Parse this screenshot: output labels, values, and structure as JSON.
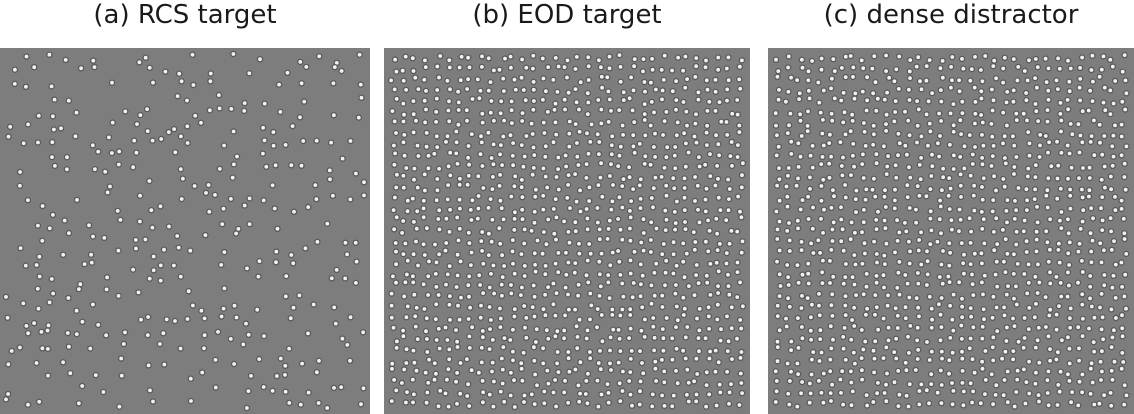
{
  "panels": [
    {
      "title": "(a) RCS target",
      "density": "sparse"
    },
    {
      "title": "(b) EOD target",
      "density": "dense"
    },
    {
      "title": "(c) dense distractor",
      "density": "dense"
    }
  ],
  "colors": {
    "background": "#7d7d7d",
    "dot_center": "#f2f2f2",
    "dot_ring": "#5a5a5a"
  }
}
